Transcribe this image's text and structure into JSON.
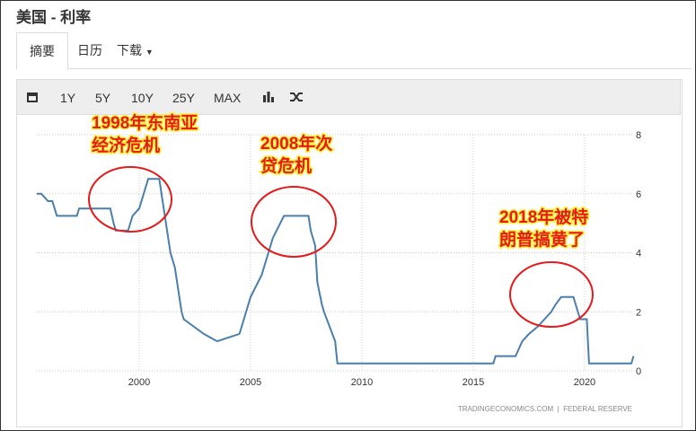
{
  "header": {
    "title": "美国 - 利率"
  },
  "tabs": [
    "摘要",
    "日历",
    "下载"
  ],
  "toolbar": [
    "1Y",
    "5Y",
    "10Y",
    "25Y",
    "MAX"
  ],
  "chart_data": {
    "type": "line",
    "x": [
      1995.4,
      1995.6,
      1995.9,
      1996.1,
      1996.2,
      1996.3,
      1997.2,
      1997.3,
      1998.7,
      1998.85,
      1998.95,
      1999.5,
      1999.6,
      1999.7,
      2000.0,
      2000.2,
      2000.4,
      2000.9,
      2001.0,
      2001.1,
      2001.3,
      2001.4,
      2001.6,
      2001.8,
      2001.9,
      2002.0,
      2002.9,
      2003.5,
      2004.5,
      2004.7,
      2005.0,
      2005.5,
      2006.0,
      2006.5,
      2007.6,
      2007.7,
      2007.9,
      2008.0,
      2008.2,
      2008.3,
      2008.8,
      2008.9,
      2015.9,
      2016.0,
      2016.9,
      2017.2,
      2017.5,
      2017.9,
      2018.2,
      2018.5,
      2018.7,
      2018.95,
      2019.5,
      2019.6,
      2019.7,
      2019.8,
      2020.1,
      2020.2,
      2022.1,
      2022.2
    ],
    "values": [
      6.0,
      6.0,
      5.75,
      5.75,
      5.5,
      5.25,
      5.25,
      5.5,
      5.5,
      5.0,
      4.75,
      4.75,
      5.0,
      5.25,
      5.5,
      6.0,
      6.5,
      6.5,
      6.0,
      5.5,
      4.5,
      4.0,
      3.5,
      2.5,
      2.0,
      1.75,
      1.25,
      1.0,
      1.25,
      1.75,
      2.5,
      3.25,
      4.5,
      5.25,
      5.25,
      4.75,
      4.25,
      3.0,
      2.25,
      2.0,
      1.0,
      0.25,
      0.25,
      0.5,
      0.5,
      1.0,
      1.25,
      1.5,
      1.75,
      2.0,
      2.25,
      2.5,
      2.5,
      2.25,
      2.0,
      1.75,
      1.75,
      0.25,
      0.25,
      0.5
    ],
    "color": "#4a7fad",
    "xlim": [
      1995.36,
      2022.18
    ],
    "ylim": [
      0,
      8
    ],
    "xticks": [
      2000,
      2005,
      2010,
      2015,
      2020
    ],
    "yticks": [
      0,
      2,
      4,
      6,
      8
    ],
    "grid": true,
    "annotations": [
      {
        "lines": [
          "1998年东南亚",
          "经济危机"
        ]
      },
      {
        "lines": [
          "2008年次",
          "贷危机"
        ]
      },
      {
        "lines": [
          "2018年被特",
          "朗普搞黄了"
        ]
      }
    ],
    "source": "TRADINGECONOMICS.COM  |  FEDERAL RESERVE"
  }
}
